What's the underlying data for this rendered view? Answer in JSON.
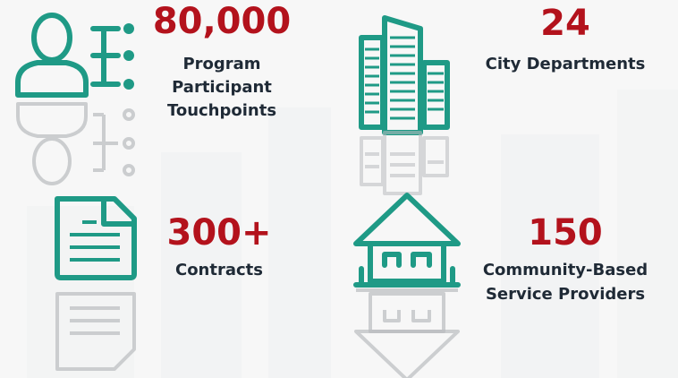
{
  "stats": [
    {
      "value": "80,000",
      "label": [
        "Program",
        "Participant",
        "Touchpoints"
      ]
    },
    {
      "value": "24",
      "label": [
        "City Departments"
      ]
    },
    {
      "value": "300+",
      "label": [
        "Contracts"
      ]
    },
    {
      "value": "150",
      "label": [
        "Community-Based",
        "Service Providers"
      ]
    }
  ]
}
